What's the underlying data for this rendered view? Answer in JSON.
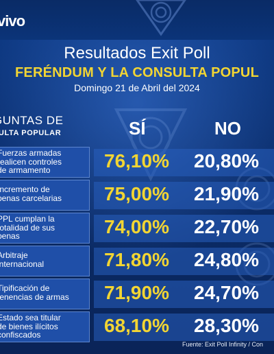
{
  "brand": {
    "logo_text": "vivo"
  },
  "header": {
    "title": "Resultados Exit Poll",
    "subtitle": "FERÉNDUM Y LA CONSULTA POPUL",
    "date": "Domingo 21 de Abril del 2024"
  },
  "table": {
    "question_header_line1": "GUNTAS DE",
    "question_header_line2": "SULTA POPULAR",
    "col_si": "SÍ",
    "col_no": "NO",
    "rows": [
      {
        "question": "Fuerzas armadas\nrealicen controles\nde armamento",
        "si": "76,10%",
        "no": "20,80%"
      },
      {
        "question": "Incremento de\npenas carcelarias",
        "si": "75,00%",
        "no": "21,90%"
      },
      {
        "question": "PPL cumplan la\ntotalidad de sus\npenas",
        "si": "74,00%",
        "no": "22,70%"
      },
      {
        "question": "Arbitraje\ninternacional",
        "si": "71,80%",
        "no": "24,80%"
      },
      {
        "question": "Tipificación de\ntenencias de armas",
        "si": "71,90%",
        "no": "24,70%"
      },
      {
        "question": "Estado sea titular\nde bienes ilícitos\nconfiscados",
        "si": "68,10%",
        "no": "28,30%"
      }
    ]
  },
  "footer": {
    "source": "Fuente: Exit Poll Infinity / Con"
  },
  "colors": {
    "background": "#0c2f6f",
    "accent_yellow": "#f2d533",
    "logo_red": "#e53935"
  }
}
